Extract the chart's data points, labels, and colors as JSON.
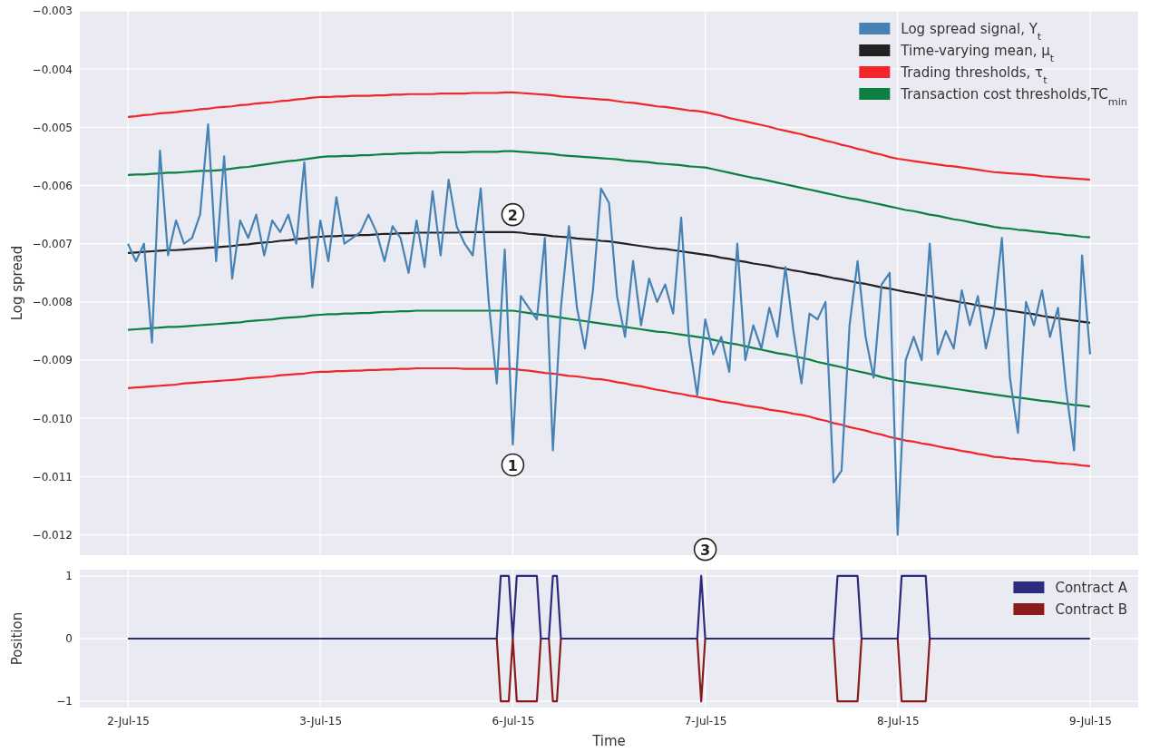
{
  "chart_data": [
    {
      "type": "line",
      "ylabel": "Log spread",
      "ylim": [
        -0.01235,
        -0.003
      ],
      "categories": [
        "2-Jul-15",
        null,
        null,
        null,
        null,
        null,
        null,
        null,
        null,
        null,
        null,
        null,
        null,
        null,
        null,
        null,
        null,
        null,
        null,
        null,
        null,
        null,
        null,
        null,
        "3-Jul-15",
        null,
        null,
        null,
        null,
        null,
        null,
        null,
        null,
        null,
        null,
        null,
        null,
        null,
        null,
        null,
        null,
        null,
        null,
        null,
        null,
        null,
        null,
        null,
        "6-Jul-15",
        null,
        null,
        null,
        null,
        null,
        null,
        null,
        null,
        null,
        null,
        null,
        null,
        null,
        null,
        null,
        null,
        null,
        null,
        null,
        null,
        null,
        null,
        null,
        "7-Jul-15",
        null,
        null,
        null,
        null,
        null,
        null,
        null,
        null,
        null,
        null,
        null,
        null,
        null,
        null,
        null,
        null,
        null,
        null,
        null,
        null,
        null,
        null,
        null,
        "8-Jul-15",
        null,
        null,
        null,
        null,
        null,
        null,
        null,
        null,
        null,
        null,
        null,
        null,
        null,
        null,
        null,
        null,
        null,
        null,
        null,
        null,
        null,
        null,
        null,
        "9-Jul-15"
      ],
      "yticks": [
        {
          "value": -0.003,
          "label": "−0.003"
        },
        {
          "value": -0.004,
          "label": "−0.004"
        },
        {
          "value": -0.005,
          "label": "−0.005"
        },
        {
          "value": -0.006,
          "label": "−0.006"
        },
        {
          "value": -0.007,
          "label": "−0.007"
        },
        {
          "value": -0.008,
          "label": "−0.008"
        },
        {
          "value": -0.009,
          "label": "−0.009"
        },
        {
          "value": -0.01,
          "label": "−0.010"
        },
        {
          "value": -0.011,
          "label": "−0.011"
        },
        {
          "value": -0.012,
          "label": "−0.012"
        }
      ],
      "tick_labels": "y",
      "grid": true,
      "legend": "top right",
      "series": [
        {
          "name": "Log spread signal, Y$_{t}$",
          "color": "#4682b4",
          "values": [
            -0.007,
            -0.0073,
            -0.007,
            -0.0087,
            -0.0054,
            -0.0072,
            -0.0066,
            -0.007,
            -0.0069,
            -0.0065,
            -0.00495,
            -0.0073,
            -0.0055,
            -0.0076,
            -0.0066,
            -0.0069,
            -0.0065,
            -0.0072,
            -0.0066,
            -0.0068,
            -0.0065,
            -0.007,
            -0.0056,
            -0.00775,
            -0.0066,
            -0.0073,
            -0.0062,
            -0.007,
            -0.0069,
            -0.0068,
            -0.0065,
            -0.0068,
            -0.0073,
            -0.0067,
            -0.0069,
            -0.0075,
            -0.0066,
            -0.0074,
            -0.0061,
            -0.0072,
            -0.0059,
            -0.0067,
            -0.007,
            -0.0072,
            -0.00605,
            -0.008,
            -0.0094,
            -0.0071,
            -0.01045,
            -0.0079,
            -0.0081,
            -0.0083,
            -0.0069,
            -0.01055,
            -0.0081,
            -0.0067,
            -0.0081,
            -0.0088,
            -0.0078,
            -0.00605,
            -0.0063,
            -0.0079,
            -0.0086,
            -0.0073,
            -0.0084,
            -0.0076,
            -0.008,
            -0.0077,
            -0.0082,
            -0.00655,
            -0.0087,
            -0.0096,
            -0.0083,
            -0.0089,
            -0.0086,
            -0.0092,
            -0.007,
            -0.009,
            -0.0084,
            -0.0088,
            -0.0081,
            -0.0086,
            -0.0074,
            -0.0085,
            -0.0094,
            -0.0082,
            -0.0083,
            -0.008,
            -0.0111,
            -0.0109,
            -0.0084,
            -0.0073,
            -0.0086,
            -0.0093,
            -0.0077,
            -0.0075,
            -0.012,
            -0.009,
            -0.0086,
            -0.009,
            -0.007,
            -0.0089,
            -0.0085,
            -0.0088,
            -0.0078,
            -0.0084,
            -0.0079,
            -0.0088,
            -0.0082,
            -0.0069,
            -0.0093,
            -0.01025,
            -0.008,
            -0.0084,
            -0.0078,
            -0.0086,
            -0.0081,
            -0.0095,
            -0.01055,
            -0.0072,
            -0.0089
          ]
        },
        {
          "name": "Time-varying mean, μ$_{t}$",
          "color": "#222222",
          "values": [
            -0.00716,
            -0.00715,
            -0.00714,
            -0.00713,
            -0.00712,
            -0.00711,
            -0.00711,
            -0.0071,
            -0.00709,
            -0.00708,
            -0.00707,
            -0.00706,
            -0.00705,
            -0.00704,
            -0.00702,
            -0.00701,
            -0.00699,
            -0.00698,
            -0.00697,
            -0.00695,
            -0.00694,
            -0.00692,
            -0.00691,
            -0.00689,
            -0.00688,
            -0.00687,
            -0.00687,
            -0.00686,
            -0.00686,
            -0.00685,
            -0.00685,
            -0.00684,
            -0.00683,
            -0.00683,
            -0.00682,
            -0.00682,
            -0.00681,
            -0.00681,
            -0.00681,
            -0.00681,
            -0.00681,
            -0.00681,
            -0.0068,
            -0.0068,
            -0.0068,
            -0.0068,
            -0.0068,
            -0.0068,
            -0.0068,
            -0.00681,
            -0.00683,
            -0.00684,
            -0.00685,
            -0.00687,
            -0.00688,
            -0.00689,
            -0.00691,
            -0.00692,
            -0.00693,
            -0.00695,
            -0.00696,
            -0.00698,
            -0.007,
            -0.00702,
            -0.00704,
            -0.00706,
            -0.00708,
            -0.00709,
            -0.00711,
            -0.00713,
            -0.00715,
            -0.00717,
            -0.00719,
            -0.00721,
            -0.00724,
            -0.00726,
            -0.00729,
            -0.00731,
            -0.00734,
            -0.00736,
            -0.00738,
            -0.00741,
            -0.00743,
            -0.00746,
            -0.00748,
            -0.00751,
            -0.00753,
            -0.00756,
            -0.00759,
            -0.00761,
            -0.00764,
            -0.00767,
            -0.00769,
            -0.00772,
            -0.00775,
            -0.00777,
            -0.0078,
            -0.00783,
            -0.00785,
            -0.00788,
            -0.0079,
            -0.00793,
            -0.00796,
            -0.00798,
            -0.00801,
            -0.00803,
            -0.00806,
            -0.00808,
            -0.00811,
            -0.00813,
            -0.00815,
            -0.00817,
            -0.00819,
            -0.00821,
            -0.00824,
            -0.00826,
            -0.00828,
            -0.0083,
            -0.00832,
            -0.00834,
            -0.00836
          ]
        },
        {
          "name": "Trading thresholds, τ$_{t}$",
          "color": "#f0262a",
          "values": [
            -0.00482,
            -0.00481,
            -0.00479,
            -0.00478,
            -0.00476,
            -0.00475,
            -0.00474,
            -0.00472,
            -0.00471,
            -0.00469,
            -0.00468,
            -0.00466,
            -0.00465,
            -0.00464,
            -0.00462,
            -0.00461,
            -0.00459,
            -0.00458,
            -0.00457,
            -0.00455,
            -0.00454,
            -0.00452,
            -0.00451,
            -0.00449,
            -0.00448,
            -0.00448,
            -0.00447,
            -0.00447,
            -0.00446,
            -0.00446,
            -0.00446,
            -0.00445,
            -0.00445,
            -0.00444,
            -0.00444,
            -0.00443,
            -0.00443,
            -0.00443,
            -0.00443,
            -0.00442,
            -0.00442,
            -0.00442,
            -0.00442,
            -0.00441,
            -0.00441,
            -0.00441,
            -0.00441,
            -0.0044,
            -0.0044,
            -0.00441,
            -0.00442,
            -0.00443,
            -0.00444,
            -0.00445,
            -0.00447,
            -0.00448,
            -0.00449,
            -0.0045,
            -0.00451,
            -0.00452,
            -0.00453,
            -0.00455,
            -0.00457,
            -0.00458,
            -0.0046,
            -0.00462,
            -0.00464,
            -0.00465,
            -0.00467,
            -0.00469,
            -0.00471,
            -0.00472,
            -0.00474,
            -0.00477,
            -0.0048,
            -0.00484,
            -0.00487,
            -0.0049,
            -0.00493,
            -0.00496,
            -0.00499,
            -0.00503,
            -0.00506,
            -0.00509,
            -0.00512,
            -0.00516,
            -0.00519,
            -0.00523,
            -0.00526,
            -0.0053,
            -0.00533,
            -0.00537,
            -0.0054,
            -0.00544,
            -0.00547,
            -0.00551,
            -0.00554,
            -0.00556,
            -0.00558,
            -0.0056,
            -0.00562,
            -0.00564,
            -0.00566,
            -0.00567,
            -0.00569,
            -0.00571,
            -0.00573,
            -0.00575,
            -0.00577,
            -0.00578,
            -0.00579,
            -0.0058,
            -0.00581,
            -0.00582,
            -0.00584,
            -0.00585,
            -0.00586,
            -0.00587,
            -0.00588,
            -0.00589,
            -0.0059
          ]
        },
        {
          "color": "#f0262a",
          "values": [
            -0.00948,
            -0.00947,
            -0.00946,
            -0.00945,
            -0.00944,
            -0.00943,
            -0.00942,
            -0.0094,
            -0.00939,
            -0.00938,
            -0.00937,
            -0.00936,
            -0.00935,
            -0.00934,
            -0.00933,
            -0.00931,
            -0.0093,
            -0.00929,
            -0.00928,
            -0.00926,
            -0.00925,
            -0.00924,
            -0.00923,
            -0.00921,
            -0.0092,
            -0.0092,
            -0.00919,
            -0.00919,
            -0.00918,
            -0.00918,
            -0.00917,
            -0.00917,
            -0.00916,
            -0.00916,
            -0.00915,
            -0.00915,
            -0.00914,
            -0.00914,
            -0.00914,
            -0.00914,
            -0.00914,
            -0.00914,
            -0.00915,
            -0.00915,
            -0.00915,
            -0.00915,
            -0.00915,
            -0.00915,
            -0.00915,
            -0.00917,
            -0.00918,
            -0.0092,
            -0.00922,
            -0.00923,
            -0.00925,
            -0.00927,
            -0.00928,
            -0.0093,
            -0.00932,
            -0.00933,
            -0.00935,
            -0.00938,
            -0.0094,
            -0.00943,
            -0.00945,
            -0.00948,
            -0.00951,
            -0.00953,
            -0.00956,
            -0.00958,
            -0.00961,
            -0.00963,
            -0.00966,
            -0.00968,
            -0.00971,
            -0.00973,
            -0.00975,
            -0.00978,
            -0.0098,
            -0.00982,
            -0.00985,
            -0.00987,
            -0.00989,
            -0.00992,
            -0.00994,
            -0.00997,
            -0.01001,
            -0.01004,
            -0.01008,
            -0.01011,
            -0.01015,
            -0.01018,
            -0.01021,
            -0.01025,
            -0.01028,
            -0.01032,
            -0.01035,
            -0.01038,
            -0.0104,
            -0.01043,
            -0.01045,
            -0.01048,
            -0.01051,
            -0.01053,
            -0.01056,
            -0.01058,
            -0.01061,
            -0.01063,
            -0.01066,
            -0.01067,
            -0.01069,
            -0.0107,
            -0.01071,
            -0.01073,
            -0.01074,
            -0.01075,
            -0.01077,
            -0.01078,
            -0.01079,
            -0.01081,
            -0.01082
          ]
        },
        {
          "name": "Transaction cost thresholds,TC$_{min}$",
          "color": "#0b8040",
          "values": [
            -0.00582,
            -0.00581,
            -0.00581,
            -0.0058,
            -0.00579,
            -0.00578,
            -0.00578,
            -0.00577,
            -0.00576,
            -0.00575,
            -0.00575,
            -0.00574,
            -0.00573,
            -0.00571,
            -0.00569,
            -0.00568,
            -0.00566,
            -0.00564,
            -0.00562,
            -0.0056,
            -0.00558,
            -0.00557,
            -0.00555,
            -0.00553,
            -0.00551,
            -0.0055,
            -0.0055,
            -0.00549,
            -0.00549,
            -0.00548,
            -0.00548,
            -0.00547,
            -0.00546,
            -0.00546,
            -0.00545,
            -0.00545,
            -0.00544,
            -0.00544,
            -0.00544,
            -0.00543,
            -0.00543,
            -0.00543,
            -0.00543,
            -0.00542,
            -0.00542,
            -0.00542,
            -0.00542,
            -0.00541,
            -0.00541,
            -0.00542,
            -0.00543,
            -0.00544,
            -0.00545,
            -0.00546,
            -0.00548,
            -0.00549,
            -0.0055,
            -0.00551,
            -0.00552,
            -0.00553,
            -0.00554,
            -0.00555,
            -0.00557,
            -0.00558,
            -0.00559,
            -0.0056,
            -0.00562,
            -0.00563,
            -0.00564,
            -0.00565,
            -0.00567,
            -0.00568,
            -0.00569,
            -0.00572,
            -0.00575,
            -0.00578,
            -0.00581,
            -0.00584,
            -0.00587,
            -0.00589,
            -0.00592,
            -0.00595,
            -0.00598,
            -0.00601,
            -0.00604,
            -0.00607,
            -0.0061,
            -0.00613,
            -0.00616,
            -0.00619,
            -0.00622,
            -0.00624,
            -0.00627,
            -0.0063,
            -0.00633,
            -0.00636,
            -0.00639,
            -0.00642,
            -0.00644,
            -0.00647,
            -0.0065,
            -0.00652,
            -0.00655,
            -0.00658,
            -0.0066,
            -0.00663,
            -0.00666,
            -0.00668,
            -0.00671,
            -0.00673,
            -0.00674,
            -0.00676,
            -0.00677,
            -0.00679,
            -0.0068,
            -0.00682,
            -0.00683,
            -0.00685,
            -0.00686,
            -0.00688,
            -0.00689
          ]
        },
        {
          "color": "#0b8040",
          "values": [
            -0.00848,
            -0.00847,
            -0.00846,
            -0.00845,
            -0.00844,
            -0.00843,
            -0.00843,
            -0.00842,
            -0.00841,
            -0.0084,
            -0.00839,
            -0.00838,
            -0.00837,
            -0.00836,
            -0.00835,
            -0.00833,
            -0.00832,
            -0.00831,
            -0.0083,
            -0.00828,
            -0.00827,
            -0.00826,
            -0.00825,
            -0.00823,
            -0.00822,
            -0.00821,
            -0.00821,
            -0.0082,
            -0.0082,
            -0.00819,
            -0.00819,
            -0.00818,
            -0.00817,
            -0.00817,
            -0.00816,
            -0.00816,
            -0.00815,
            -0.00815,
            -0.00815,
            -0.00815,
            -0.00815,
            -0.00815,
            -0.00815,
            -0.00815,
            -0.00815,
            -0.00815,
            -0.00815,
            -0.00815,
            -0.00815,
            -0.00817,
            -0.00819,
            -0.00821,
            -0.00823,
            -0.00825,
            -0.00827,
            -0.00829,
            -0.00831,
            -0.00833,
            -0.00835,
            -0.00837,
            -0.00839,
            -0.00841,
            -0.00843,
            -0.00845,
            -0.00847,
            -0.00849,
            -0.00851,
            -0.00852,
            -0.00854,
            -0.00856,
            -0.00858,
            -0.0086,
            -0.00862,
            -0.00865,
            -0.00868,
            -0.00871,
            -0.00873,
            -0.00876,
            -0.00879,
            -0.00882,
            -0.00885,
            -0.00888,
            -0.0089,
            -0.00893,
            -0.00896,
            -0.00899,
            -0.00903,
            -0.00906,
            -0.00909,
            -0.00912,
            -0.00916,
            -0.00919,
            -0.00922,
            -0.00925,
            -0.00929,
            -0.00932,
            -0.00935,
            -0.00937,
            -0.00939,
            -0.00941,
            -0.00943,
            -0.00945,
            -0.00947,
            -0.00949,
            -0.00951,
            -0.00953,
            -0.00955,
            -0.00957,
            -0.00959,
            -0.00961,
            -0.00963,
            -0.00964,
            -0.00966,
            -0.00968,
            -0.0097,
            -0.00971,
            -0.00973,
            -0.00975,
            -0.00977,
            -0.00978,
            -0.0098
          ]
        }
      ],
      "annotations": [
        {
          "text": "1",
          "x": "6-Jul-15",
          "y": -0.0108
        },
        {
          "text": "2",
          "x": "6-Jul-15",
          "y": -0.0065
        },
        {
          "text": "3",
          "x": "7-Jul-15",
          "y": -0.01225
        }
      ]
    },
    {
      "type": "line",
      "xlabel": "Time",
      "ylabel": "Position",
      "ylim": [
        -1.1,
        1.1
      ],
      "categories": [
        "2-Jul-15",
        null,
        null,
        null,
        null,
        null,
        null,
        null,
        null,
        null,
        null,
        null,
        null,
        null,
        null,
        null,
        null,
        null,
        null,
        null,
        null,
        null,
        null,
        null,
        null,
        null,
        null,
        null,
        null,
        null,
        null,
        null,
        null,
        null,
        null,
        null,
        null,
        null,
        null,
        null,
        null,
        null,
        null,
        null,
        null,
        null,
        null,
        null,
        "3-Jul-15",
        null,
        null,
        null,
        null,
        null,
        null,
        null,
        null,
        null,
        null,
        null,
        null,
        null,
        null,
        null,
        null,
        null,
        null,
        null,
        null,
        null,
        null,
        null,
        null,
        null,
        null,
        null,
        null,
        null,
        null,
        null,
        null,
        null,
        null,
        null,
        null,
        null,
        null,
        null,
        null,
        null,
        null,
        null,
        null,
        null,
        null,
        null,
        "6-Jul-15",
        null,
        null,
        null,
        null,
        null,
        null,
        null,
        null,
        null,
        null,
        null,
        null,
        null,
        null,
        null,
        null,
        null,
        null,
        null,
        null,
        null,
        null,
        null,
        null,
        null,
        null,
        null,
        null,
        null,
        null,
        null,
        null,
        null,
        null,
        null,
        null,
        null,
        null,
        null,
        null,
        null,
        null,
        null,
        null,
        null,
        null,
        null,
        "7-Jul-15",
        null,
        null,
        null,
        null,
        null,
        null,
        null,
        null,
        null,
        null,
        null,
        null,
        null,
        null,
        null,
        null,
        null,
        null,
        null,
        null,
        null,
        null,
        null,
        null,
        null,
        null,
        null,
        null,
        null,
        null,
        null,
        null,
        null,
        null,
        null,
        null,
        null,
        null,
        null,
        null,
        null,
        null,
        null,
        null,
        null,
        null,
        null,
        "8-Jul-15",
        null,
        null,
        null,
        null,
        null,
        null,
        null,
        null,
        null,
        null,
        null,
        null,
        null,
        null,
        null,
        null,
        null,
        null,
        null,
        null,
        null,
        null,
        null,
        null,
        null,
        null,
        null,
        null,
        null,
        null,
        null,
        null,
        null,
        null,
        null,
        null,
        null,
        null,
        null,
        null,
        null,
        null,
        null,
        null,
        null,
        null,
        null,
        "9-Jul-15"
      ],
      "yticks": [
        {
          "value": -1,
          "label": "−1"
        },
        0,
        1
      ],
      "grid": true,
      "legend": "top right",
      "series": [
        {
          "name": "Contract A",
          "color": "#2c2c7e",
          "values": [
            0,
            0,
            0,
            0,
            0,
            0,
            0,
            0,
            0,
            0,
            0,
            0,
            0,
            0,
            0,
            0,
            0,
            0,
            0,
            0,
            0,
            0,
            0,
            0,
            0,
            0,
            0,
            0,
            0,
            0,
            0,
            0,
            0,
            0,
            0,
            0,
            0,
            0,
            0,
            0,
            0,
            0,
            0,
            0,
            0,
            0,
            0,
            0,
            0,
            0,
            0,
            0,
            0,
            0,
            0,
            0,
            0,
            0,
            0,
            0,
            0,
            0,
            0,
            0,
            0,
            0,
            0,
            0,
            0,
            0,
            0,
            0,
            0,
            0,
            0,
            0,
            0,
            0,
            0,
            0,
            0,
            0,
            0,
            0,
            0,
            0,
            0,
            0,
            0,
            0,
            0,
            0,
            0,
            1,
            1,
            1,
            0,
            1,
            1,
            1,
            1,
            1,
            1,
            0,
            0,
            0,
            1,
            1,
            0,
            0,
            0,
            0,
            0,
            0,
            0,
            0,
            0,
            0,
            0,
            0,
            0,
            0,
            0,
            0,
            0,
            0,
            0,
            0,
            0,
            0,
            0,
            0,
            0,
            0,
            0,
            0,
            0,
            0,
            0,
            0,
            0,
            0,
            0,
            1,
            0,
            0,
            0,
            0,
            0,
            0,
            0,
            0,
            0,
            0,
            0,
            0,
            0,
            0,
            0,
            0,
            0,
            0,
            0,
            0,
            0,
            0,
            0,
            0,
            0,
            0,
            0,
            0,
            0,
            0,
            0,
            0,
            0,
            1,
            1,
            1,
            1,
            1,
            1,
            0,
            0,
            0,
            0,
            0,
            0,
            0,
            0,
            0,
            0,
            1,
            1,
            1,
            1,
            1,
            1,
            1,
            0,
            0,
            0,
            0,
            0,
            0,
            0,
            0,
            0,
            0,
            0,
            0,
            0,
            0,
            0,
            0,
            0,
            0,
            0,
            0,
            0,
            0,
            0,
            0,
            0,
            0,
            0,
            0,
            0,
            0,
            0,
            0,
            0,
            0,
            0,
            0,
            0,
            0,
            0,
            0,
            0
          ]
        },
        {
          "name": "Contract B",
          "color": "#8b1a1a",
          "values": [
            null,
            null,
            null,
            null,
            null,
            null,
            null,
            null,
            null,
            null,
            null,
            null,
            null,
            null,
            null,
            null,
            null,
            null,
            null,
            null,
            null,
            null,
            null,
            null,
            null,
            null,
            null,
            null,
            null,
            null,
            null,
            null,
            null,
            null,
            null,
            null,
            null,
            null,
            null,
            null,
            null,
            null,
            null,
            null,
            null,
            null,
            null,
            null,
            null,
            null,
            null,
            null,
            null,
            null,
            null,
            null,
            null,
            null,
            null,
            null,
            null,
            null,
            null,
            null,
            null,
            null,
            null,
            null,
            null,
            null,
            null,
            null,
            null,
            null,
            null,
            null,
            null,
            null,
            null,
            null,
            null,
            null,
            null,
            null,
            null,
            null,
            null,
            null,
            null,
            null,
            null,
            null,
            0,
            -1,
            -1,
            -1,
            0,
            -1,
            -1,
            -1,
            -1,
            -1,
            -1,
            0,
            null,
            0,
            -1,
            -1,
            0,
            null,
            null,
            null,
            null,
            null,
            null,
            null,
            null,
            null,
            null,
            null,
            null,
            null,
            null,
            null,
            null,
            null,
            null,
            null,
            null,
            null,
            null,
            null,
            null,
            null,
            null,
            null,
            null,
            null,
            null,
            null,
            null,
            null,
            0,
            -1,
            0,
            null,
            null,
            null,
            null,
            null,
            null,
            null,
            null,
            null,
            null,
            null,
            null,
            null,
            null,
            null,
            null,
            null,
            null,
            null,
            null,
            null,
            null,
            null,
            null,
            null,
            null,
            null,
            null,
            null,
            null,
            null,
            0,
            -1,
            -1,
            -1,
            -1,
            -1,
            -1,
            0,
            null,
            null,
            null,
            null,
            null,
            null,
            null,
            null,
            0,
            -1,
            -1,
            -1,
            -1,
            -1,
            -1,
            -1,
            0,
            null,
            null,
            null,
            null,
            null,
            null,
            null,
            null,
            null,
            null,
            null,
            null,
            null,
            null,
            null,
            null,
            null,
            null,
            null,
            null,
            null,
            null,
            null,
            null,
            null,
            null,
            null,
            null,
            null,
            null,
            null,
            null,
            null,
            null,
            null,
            null,
            null,
            null,
            null,
            null
          ]
        }
      ]
    }
  ]
}
